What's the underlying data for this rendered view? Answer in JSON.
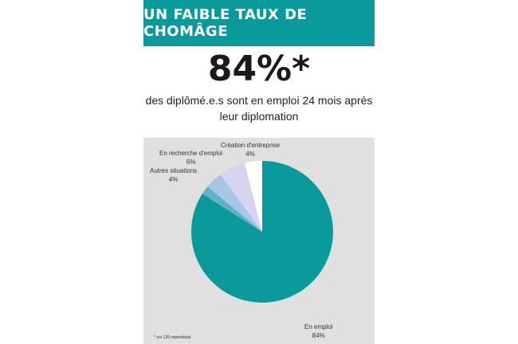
{
  "header": {
    "title": "UN FAIBLE TAUX DE CHOMÂGE",
    "big_stat": "84%*",
    "subtitle": "des diplômé.e.s sont en emploi 24 mois après leur diplomation"
  },
  "chart_data": {
    "type": "pie",
    "start": "12 o'clock",
    "direction": "clockwise",
    "slices": [
      {
        "label": "En emploi",
        "value": 84,
        "value_label": "84%",
        "color": "#0b9a9b"
      },
      {
        "label": "",
        "value": 2,
        "value_label": "",
        "color": "#5fb3c9"
      },
      {
        "label": "Autres situations",
        "value": 4,
        "value_label": "4%",
        "color": "#a8c6e6"
      },
      {
        "label": "En recherche d'emploi",
        "value": 6,
        "value_label": "6%",
        "color": "#d6d4ee"
      },
      {
        "label": "Création d'entreprise",
        "value": 4,
        "value_label": "4%",
        "color": "#ffffff"
      }
    ],
    "colors": {
      "background": "#e0e0e0"
    }
  },
  "footnote": "* sur 126 répondants"
}
